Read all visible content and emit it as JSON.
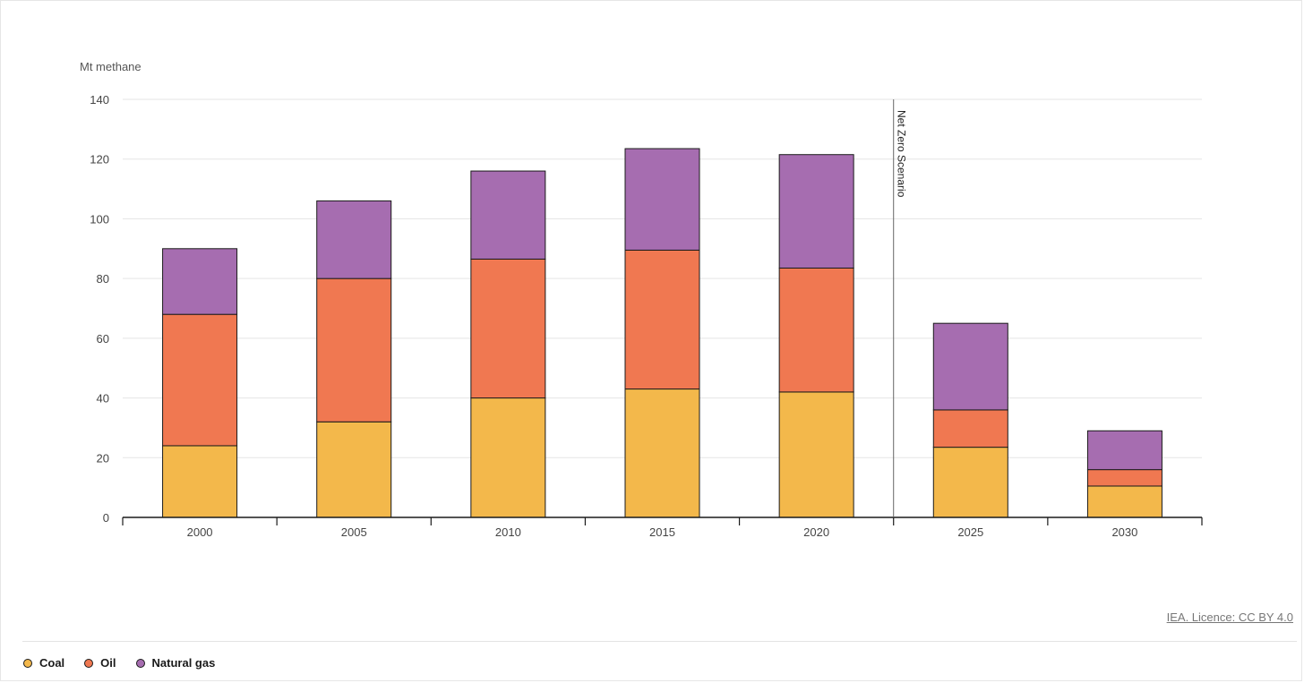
{
  "chart_data": {
    "type": "bar",
    "stacked": true,
    "y_unit_label": "Mt methane",
    "categories": [
      "2000",
      "2005",
      "2010",
      "2015",
      "2020",
      "2025",
      "2030"
    ],
    "series": [
      {
        "name": "Coal",
        "color": "#f3b84b",
        "values": [
          24,
          32,
          40,
          43,
          42,
          23.5,
          10.5
        ]
      },
      {
        "name": "Oil",
        "color": "#f07851",
        "values": [
          44,
          48,
          46.5,
          46.5,
          41.5,
          12.5,
          5.5
        ]
      },
      {
        "name": "Natural gas",
        "color": "#a66db0",
        "values": [
          22,
          26,
          29.5,
          34,
          38,
          29,
          13
        ]
      }
    ],
    "ylim": [
      0,
      140
    ],
    "yticks": [
      0,
      20,
      40,
      60,
      80,
      100,
      120,
      140
    ],
    "grid": true,
    "legend": "bottom-left",
    "annotation": {
      "label": "Net Zero Scenario",
      "between": [
        "2020",
        "2025"
      ]
    }
  },
  "source": {
    "label": "IEA. Licence: CC BY 4.0"
  },
  "colors": {
    "bar_outline": "#1a1a1a",
    "grid": "#e5e5e5",
    "axis": "#1a1a1a"
  }
}
